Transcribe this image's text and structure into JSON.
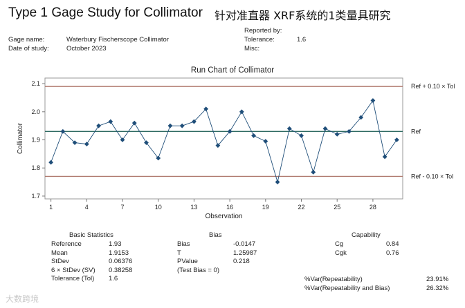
{
  "header": {
    "title": "Type 1 Gage Study for Collimator",
    "title_cn": "针对准直器 XRF系统的1类量具研究"
  },
  "info": {
    "gage_name_label": "Gage name:",
    "gage_name_value": "Waterbury Fischerscope Collimator",
    "date_label": "Date of study:",
    "date_value": "October 2023",
    "reported_by_label": "Reported by:",
    "tolerance_label": "Tolerance:",
    "tolerance_value": "1.6",
    "misc_label": "Misc:"
  },
  "chart_data": {
    "type": "line",
    "title": "Run Chart of Collimator",
    "xlabel": "Observation",
    "ylabel": "Collimator",
    "xlim": [
      0.5,
      30.5
    ],
    "ylim": [
      1.69,
      2.12
    ],
    "x_ticks": [
      1,
      4,
      7,
      10,
      13,
      16,
      19,
      22,
      25,
      28
    ],
    "y_ticks": [
      1.7,
      1.8,
      1.9,
      2.0,
      2.1
    ],
    "y_tick_labels": [
      "1.7",
      "1.8",
      "1.9",
      "2.0",
      "2.1"
    ],
    "x": [
      1,
      2,
      3,
      4,
      5,
      6,
      7,
      8,
      9,
      10,
      11,
      12,
      13,
      14,
      15,
      16,
      17,
      18,
      19,
      20,
      21,
      22,
      23,
      24,
      25,
      26,
      27,
      28,
      29,
      30
    ],
    "values": [
      1.82,
      1.93,
      1.89,
      1.885,
      1.95,
      1.965,
      1.9,
      1.96,
      1.89,
      1.835,
      1.95,
      1.95,
      1.965,
      2.01,
      1.88,
      1.93,
      2.0,
      1.915,
      1.895,
      1.75,
      1.94,
      1.915,
      1.785,
      1.94,
      1.92,
      1.93,
      1.98,
      2.04,
      1.84,
      1.9
    ],
    "ref_lines": [
      {
        "name": "upper",
        "value": 2.09,
        "label": "Ref + 0.10 × Tol",
        "color": "#b07a6e"
      },
      {
        "name": "ref",
        "value": 1.93,
        "label": "Ref",
        "color": "#2f6b63"
      },
      {
        "name": "lower",
        "value": 1.77,
        "label": "Ref - 0.10 × Tol",
        "color": "#b07a6e"
      }
    ],
    "series_color": "#1f4e79"
  },
  "basic_stats": {
    "title": "Basic Statistics",
    "rows": [
      {
        "label": "Reference",
        "value": "1.93"
      },
      {
        "label": "Mean",
        "value": "1.9153"
      },
      {
        "label": "StDev",
        "value": "0.06376"
      },
      {
        "label": "6 × StDev (SV)",
        "value": "0.38258"
      },
      {
        "label": "Tolerance (Tol)",
        "value": "1.6"
      }
    ]
  },
  "bias": {
    "title": "Bias",
    "rows": [
      {
        "label": "Bias",
        "value": "-0.0147"
      },
      {
        "label": "T",
        "value": "1.25987"
      },
      {
        "label": "PValue",
        "value": "0.218"
      },
      {
        "label": "(Test Bias = 0)",
        "value": ""
      }
    ]
  },
  "capability": {
    "title": "Capability",
    "rows": [
      {
        "label": "Cg",
        "value": "0.84"
      },
      {
        "label": "Cgk",
        "value": "0.76"
      }
    ],
    "var_rows": [
      {
        "label": "%Var(Repeatability)",
        "value": "23.91%"
      },
      {
        "label": "%Var(Repeatability and Bias)",
        "value": "26.32%"
      }
    ]
  },
  "watermark": "大数跨境"
}
